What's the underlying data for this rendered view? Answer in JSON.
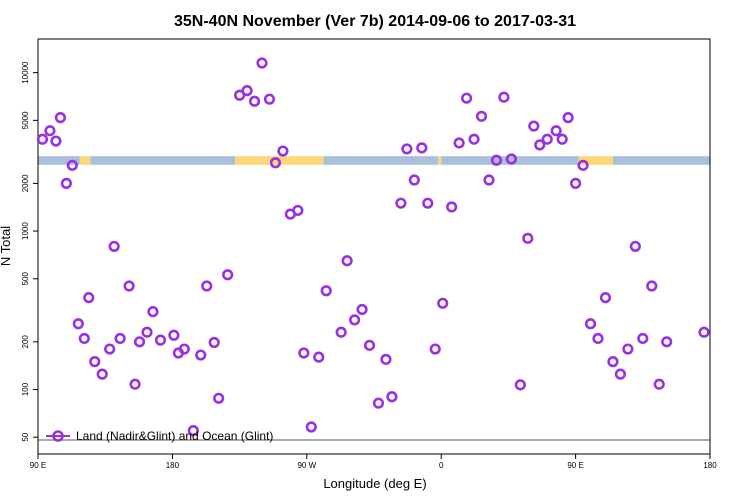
{
  "chart_data": {
    "type": "scatter",
    "title": "35N-40N November (Ver 7b)   2014-09-06 to 2017-03-31",
    "xlabel": "Longitude (deg E)",
    "ylabel": "N Total",
    "y_scale": "log",
    "ylim": [
      48,
      13500
    ],
    "x_ticks": [
      {
        "value": 90,
        "label": "90 E"
      },
      {
        "value": 180,
        "label": "180"
      },
      {
        "value": 270,
        "label": "90 W"
      },
      {
        "value": 360,
        "label": "0"
      },
      {
        "value": 450,
        "label": "90 E"
      },
      {
        "value": 540,
        "label": "180"
      }
    ],
    "xlim": [
      90,
      540
    ],
    "y_ticks": [
      50,
      100,
      200,
      500,
      1000,
      2000,
      5000,
      10000
    ],
    "legend": {
      "label": "Land (Nadir&Glint) and Ocean (Glint)",
      "position": "bottom-left"
    },
    "colors": {
      "points": "#9b30e0",
      "ocean": "#a9bfdc",
      "land": "#fbd97a"
    },
    "series": [
      {
        "values": [
          [
            93,
            3800
          ],
          [
            98,
            4300
          ],
          [
            102,
            3700
          ],
          [
            105,
            5200
          ],
          [
            109,
            2000
          ],
          [
            113,
            2600
          ],
          [
            117,
            260
          ],
          [
            121,
            210
          ],
          [
            124,
            380
          ],
          [
            128,
            150
          ],
          [
            133,
            125
          ],
          [
            138,
            180
          ],
          [
            141,
            800
          ],
          [
            145,
            210
          ],
          [
            151,
            450
          ],
          [
            155,
            108
          ],
          [
            158,
            200
          ],
          [
            163,
            230
          ],
          [
            167,
            310
          ],
          [
            172,
            205
          ],
          [
            181,
            220
          ],
          [
            184,
            170
          ],
          [
            188,
            180
          ],
          [
            194,
            55
          ],
          [
            199,
            165
          ],
          [
            203,
            450
          ],
          [
            208,
            198
          ],
          [
            211,
            88
          ],
          [
            217,
            530
          ],
          [
            225,
            7200
          ],
          [
            230,
            7700
          ],
          [
            235,
            6600
          ],
          [
            240,
            11500
          ],
          [
            245,
            6800
          ],
          [
            249,
            2700
          ],
          [
            254,
            3200
          ],
          [
            259,
            1280
          ],
          [
            264,
            1350
          ],
          [
            268,
            170
          ],
          [
            273,
            58
          ],
          [
            278,
            160
          ],
          [
            283,
            420
          ],
          [
            293,
            230
          ],
          [
            297,
            650
          ],
          [
            302,
            275
          ],
          [
            307,
            320
          ],
          [
            312,
            190
          ],
          [
            318,
            82
          ],
          [
            323,
            155
          ],
          [
            327,
            90
          ],
          [
            333,
            1500
          ],
          [
            337,
            3300
          ],
          [
            342,
            2100
          ],
          [
            347,
            3350
          ],
          [
            351,
            1500
          ],
          [
            356,
            180
          ],
          [
            361,
            350
          ],
          [
            367,
            1420
          ],
          [
            372,
            3600
          ],
          [
            377,
            6900
          ],
          [
            382,
            3800
          ],
          [
            387,
            5300
          ],
          [
            392,
            2100
          ],
          [
            397,
            2800
          ],
          [
            402,
            7000
          ],
          [
            407,
            2850
          ],
          [
            413,
            107
          ],
          [
            418,
            900
          ],
          [
            422,
            4600
          ],
          [
            426,
            3500
          ],
          [
            431,
            3800
          ],
          [
            437,
            4300
          ],
          [
            441,
            3800
          ],
          [
            445,
            5200
          ],
          [
            450,
            2000
          ],
          [
            455,
            2600
          ],
          [
            460,
            260
          ],
          [
            465,
            210
          ],
          [
            470,
            380
          ],
          [
            475,
            150
          ],
          [
            480,
            125
          ],
          [
            485,
            180
          ],
          [
            490,
            800
          ],
          [
            495,
            210
          ],
          [
            501,
            450
          ],
          [
            506,
            108
          ],
          [
            511,
            200
          ],
          [
            536,
            230
          ]
        ]
      }
    ],
    "band": {
      "y_range": [
        2620,
        2970
      ],
      "ocean": [
        [
          90,
          118
        ],
        [
          125,
          222
        ],
        [
          281,
          358
        ],
        [
          360,
          452
        ],
        [
          475,
          540
        ]
      ],
      "land": [
        [
          118,
          125
        ],
        [
          222,
          281
        ],
        [
          358,
          360
        ],
        [
          452,
          475
        ]
      ]
    }
  }
}
